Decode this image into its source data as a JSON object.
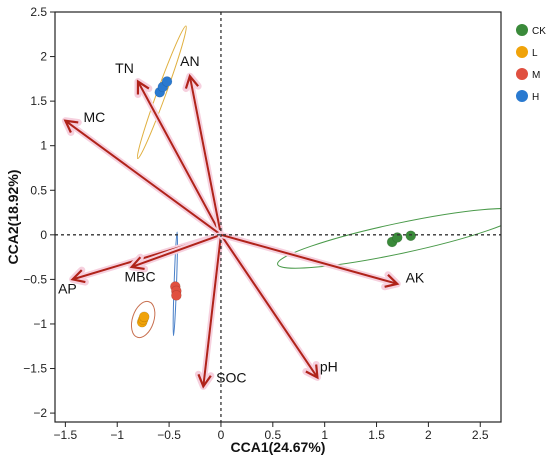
{
  "chart_data": {
    "type": "scatter",
    "title": "",
    "xlabel": "CCA1(24.67%)",
    "ylabel": "CCA2(18.92%)",
    "xlim": [
      -1.6,
      2.7
    ],
    "ylim": [
      -2.1,
      2.5
    ],
    "xticks": [
      -1.5,
      -1,
      -0.5,
      0,
      0.5,
      1,
      1.5,
      2,
      2.5
    ],
    "xtick_labels": [
      "−1.5",
      "−1",
      "−0.5",
      "0",
      "0.5",
      "1",
      "1.5",
      "2",
      "2.5"
    ],
    "yticks": [
      -2,
      -1.5,
      -1,
      -0.5,
      0,
      0.5,
      1,
      1.5,
      2,
      2.5
    ],
    "ytick_labels": [
      "−2",
      "−1.5",
      "−1",
      "−0.5",
      "0",
      "0.5",
      "1",
      "1.5",
      "2",
      "2.5"
    ],
    "reference_lines": {
      "x": 0,
      "y": 0,
      "style": "dotted"
    },
    "grid": false,
    "legend_position": "top-right, outside plot",
    "series": [
      {
        "name": "CK",
        "color": "#3a8a3a",
        "points": [
          [
            1.65,
            -0.08
          ],
          [
            1.7,
            -0.03
          ],
          [
            1.83,
            -0.01
          ]
        ],
        "ellipse": {
          "center": [
            1.72,
            -0.04
          ],
          "semi_axes": [
            1.2,
            0.17
          ],
          "rotation_deg": 12,
          "color": "#4a9a4a"
        }
      },
      {
        "name": "L",
        "color": "#f0a30a",
        "points": [
          [
            -0.76,
            -0.98
          ],
          [
            -0.75,
            -0.95
          ],
          [
            -0.74,
            -0.92
          ]
        ],
        "ellipse": {
          "center": [
            -0.75,
            -0.95
          ],
          "semi_axes": [
            0.18,
            0.12
          ],
          "rotation_deg": 72,
          "color": "#c87050"
        }
      },
      {
        "name": "M",
        "color": "#e05040",
        "points": [
          [
            -0.44,
            -0.58
          ],
          [
            -0.43,
            -0.63
          ],
          [
            -0.43,
            -0.68
          ]
        ],
        "ellipse": {
          "center": [
            -0.44,
            -0.55
          ],
          "semi_axes": [
            0.5,
            0.01
          ],
          "rotation_deg": 88,
          "color": "#4a80c8"
        }
      },
      {
        "name": "H",
        "color": "#2a7ad0",
        "points": [
          [
            -0.59,
            1.6
          ],
          [
            -0.56,
            1.66
          ],
          [
            -0.52,
            1.72
          ]
        ],
        "ellipse": {
          "center": [
            -0.57,
            1.6
          ],
          "semi_axes": [
            0.68,
            0.05
          ],
          "rotation_deg": 70,
          "color": "#e0b040"
        }
      }
    ],
    "vectors": [
      {
        "label": "TN",
        "x": -0.8,
        "y": 1.72,
        "label_at": [
          -0.93,
          1.87
        ]
      },
      {
        "label": "AN",
        "x": -0.3,
        "y": 1.78,
        "label_at": [
          -0.3,
          1.95
        ]
      },
      {
        "label": "MC",
        "x": -1.5,
        "y": 1.28,
        "label_at": [
          -1.22,
          1.32
        ]
      },
      {
        "label": "AP",
        "x": -1.43,
        "y": -0.5,
        "label_at": [
          -1.48,
          -0.6
        ]
      },
      {
        "label": "MBC",
        "x": -0.86,
        "y": -0.36,
        "label_at": [
          -0.78,
          -0.47
        ]
      },
      {
        "label": "SOC",
        "x": -0.17,
        "y": -1.7,
        "label_at": [
          0.1,
          -1.6
        ]
      },
      {
        "label": "pH",
        "x": 0.93,
        "y": -1.6,
        "label_at": [
          1.04,
          -1.48
        ]
      },
      {
        "label": "AK",
        "x": 1.7,
        "y": -0.55,
        "label_at": [
          1.87,
          -0.48
        ]
      }
    ],
    "vector_color": "#b0231a",
    "vector_halo_color": "#f6d0de"
  }
}
